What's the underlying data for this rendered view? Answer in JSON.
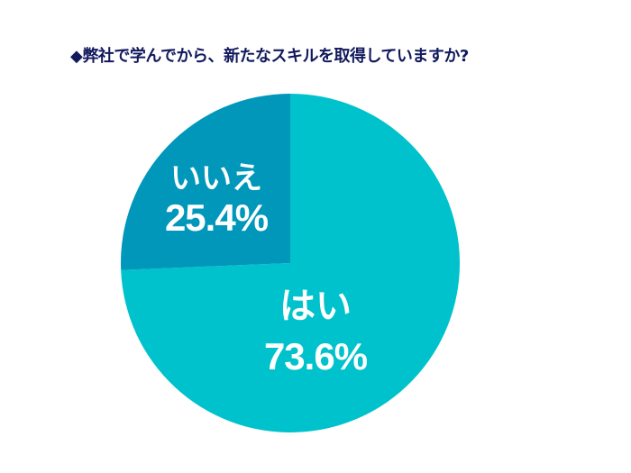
{
  "title": "◆弊社で学んでから、新たなスキルを取得していますか?",
  "colors": {
    "yes": "#00c2cc",
    "no": "#0097ba",
    "title": "#121a5e"
  },
  "labels": {
    "yes": {
      "name": "はい",
      "pct": "73.6%"
    },
    "no": {
      "name": "いいえ",
      "pct": "25.4%"
    }
  },
  "chart_data": {
    "type": "pie",
    "title": "◆弊社で学んでから、新たなスキルを取得していますか?",
    "categories": [
      "はい",
      "いいえ"
    ],
    "values": [
      73.6,
      25.4
    ],
    "legend": "none (labels inside slices)"
  }
}
